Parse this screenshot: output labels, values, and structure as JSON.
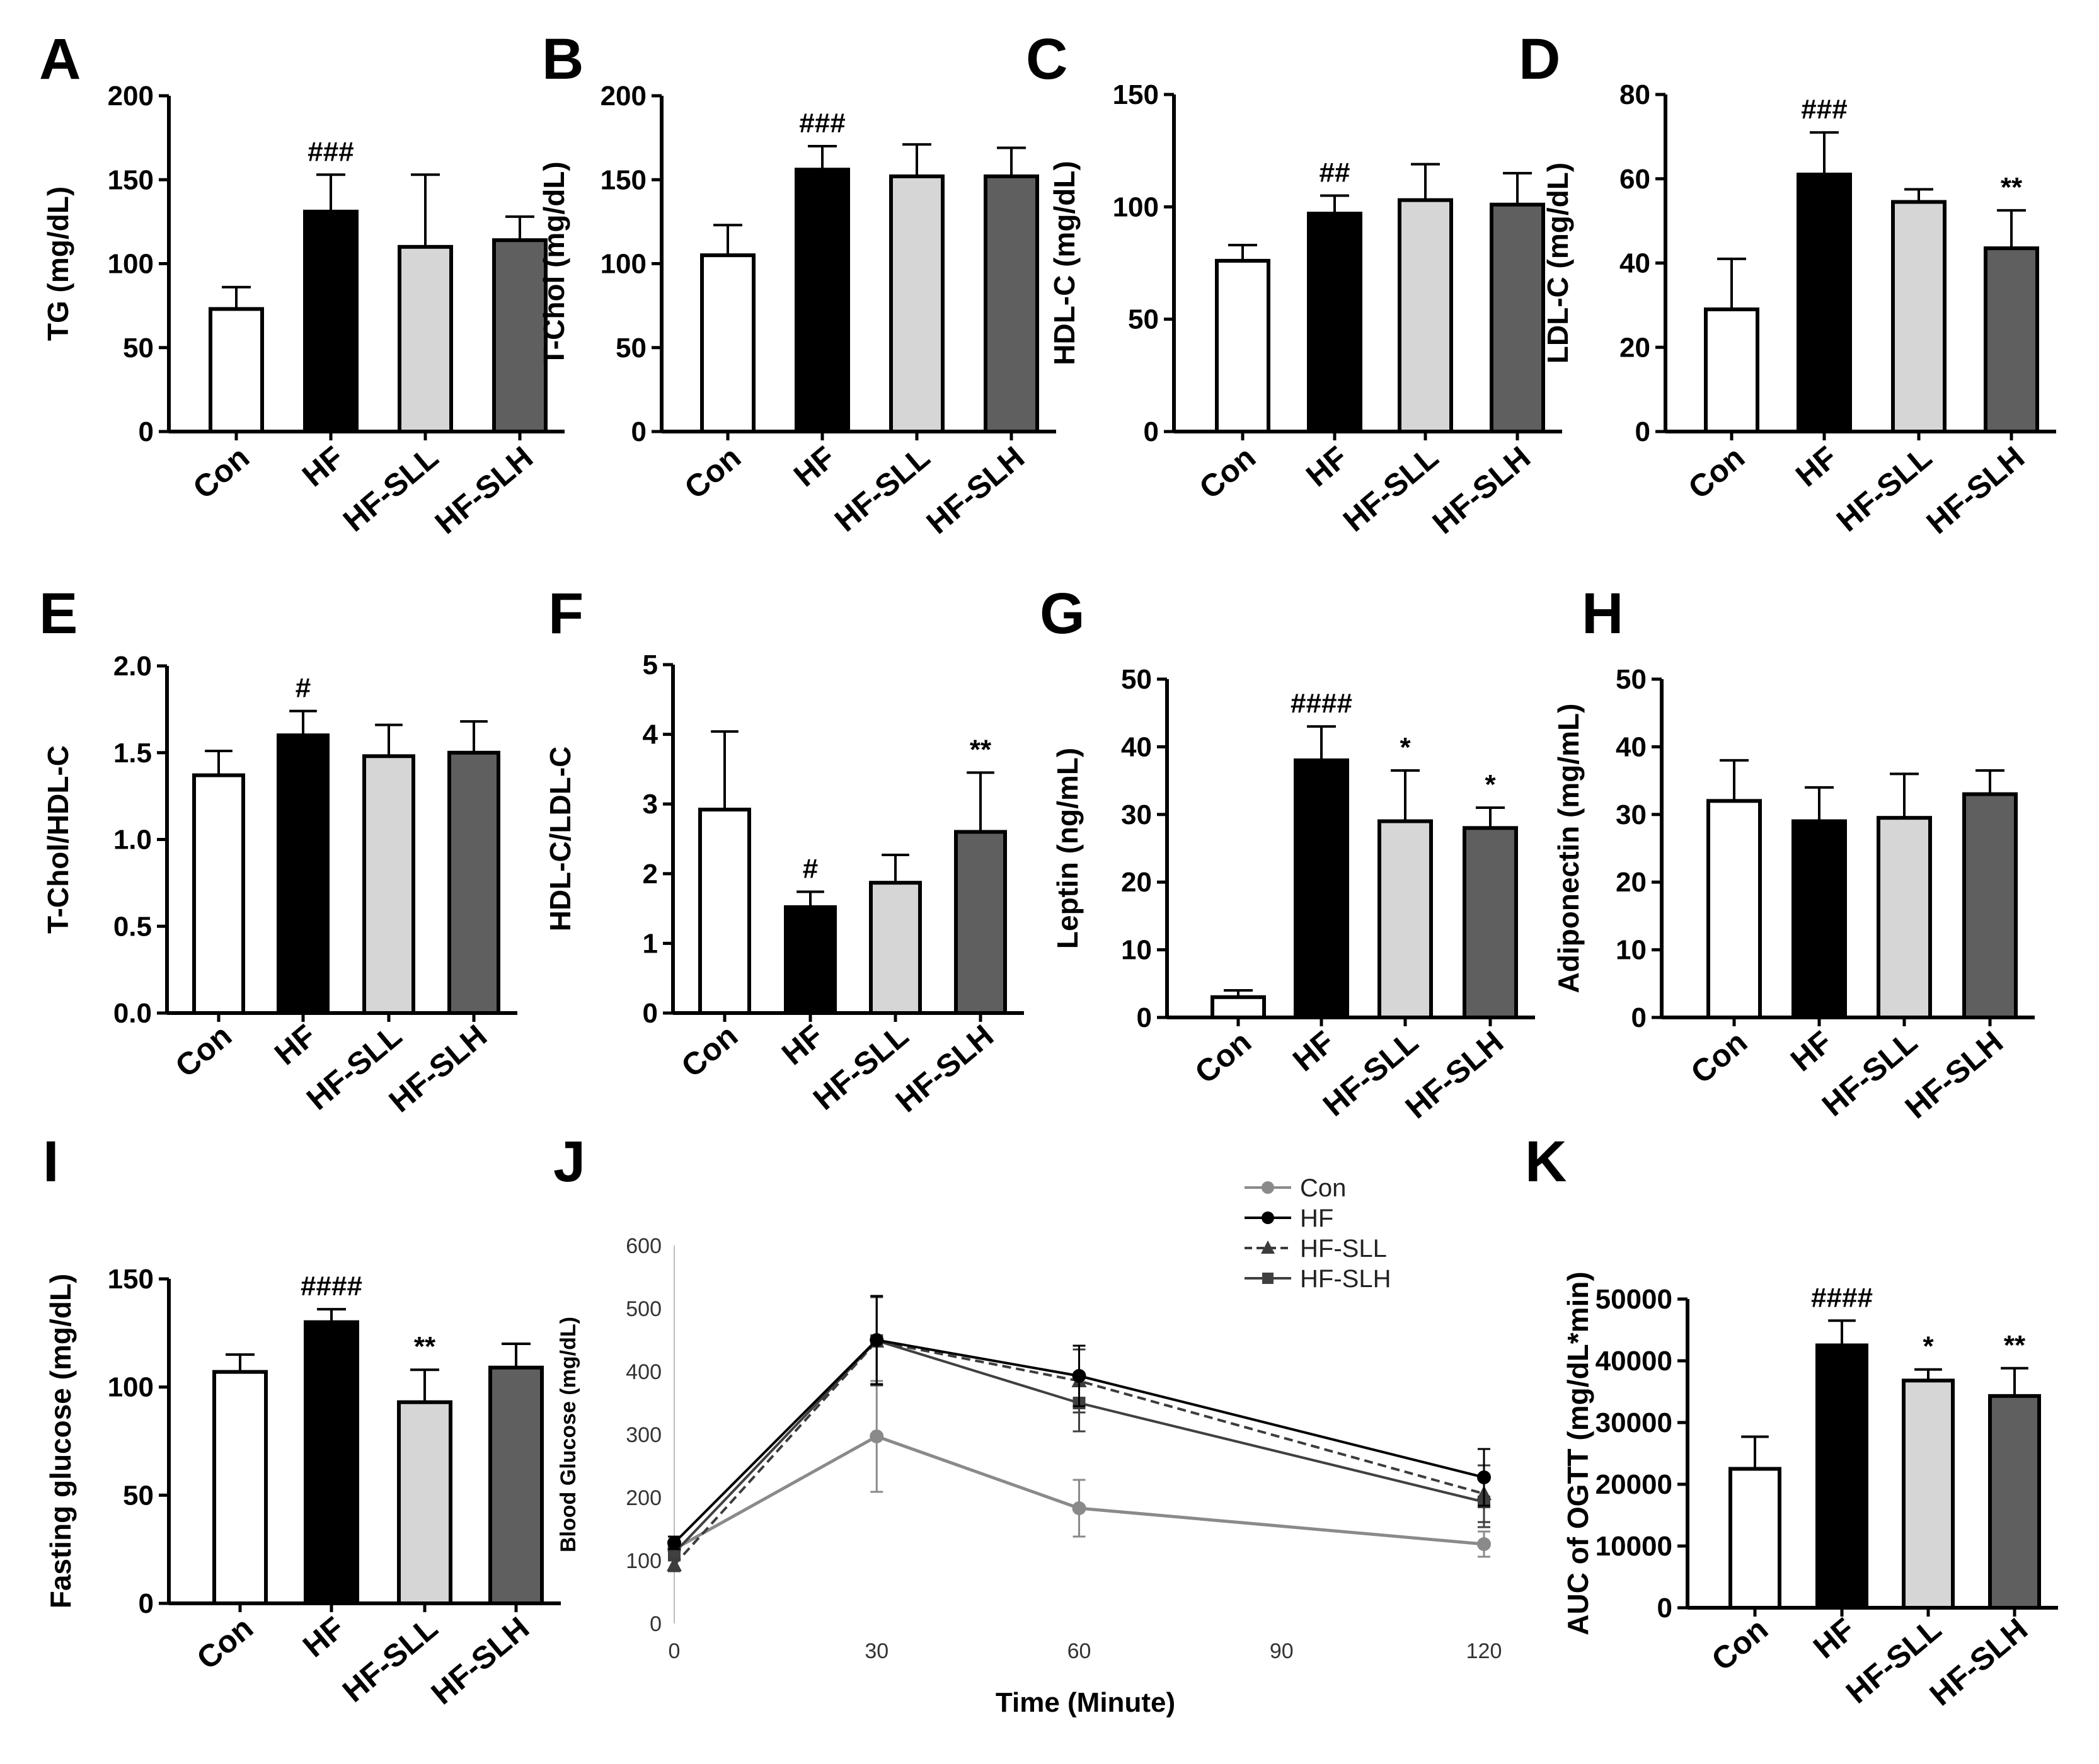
{
  "colors": {
    "Con": "#ffffff",
    "HF": "#000000",
    "HF-SLL": "#d6d6d6",
    "HF-SLH": "#5f5f5f",
    "line_Con": "#8a8a8a",
    "line_HF": "#000000",
    "line_HF-SLL": "#3c3c3c",
    "line_HF-SLH": "#404040"
  },
  "chart_data": [
    {
      "id": "A",
      "label": "A",
      "type": "bar",
      "ylabel": "TG (mg/dL)",
      "categories": [
        "Con",
        "HF",
        "HF-SLL",
        "HF-SLH"
      ],
      "values": [
        73,
        131,
        110,
        114
      ],
      "errors": [
        13,
        22,
        43,
        14
      ],
      "sig": [
        "",
        "###",
        "",
        ""
      ],
      "ylim": [
        0,
        200
      ],
      "yticks": [
        0,
        50,
        100,
        150,
        200
      ],
      "ytick_labels": [
        "0",
        "50",
        "100",
        "150",
        "200"
      ]
    },
    {
      "id": "B",
      "label": "B",
      "type": "bar",
      "ylabel": "T-Chol (mg/dL)",
      "categories": [
        "Con",
        "HF",
        "HF-SLL",
        "HF-SLH"
      ],
      "values": [
        105,
        156,
        152,
        152
      ],
      "errors": [
        18,
        14,
        19,
        17
      ],
      "sig": [
        "",
        "###",
        "",
        ""
      ],
      "ylim": [
        0,
        200
      ],
      "yticks": [
        0,
        50,
        100,
        150,
        200
      ],
      "ytick_labels": [
        "0",
        "50",
        "100",
        "150",
        "200"
      ]
    },
    {
      "id": "C",
      "label": "C",
      "type": "bar",
      "ylabel": "HDL-C (mg/dL)",
      "categories": [
        "Con",
        "HF",
        "HF-SLL",
        "HF-SLH"
      ],
      "values": [
        76,
        97,
        103,
        101
      ],
      "errors": [
        7,
        8,
        16,
        14
      ],
      "sig": [
        "",
        "##",
        "",
        ""
      ],
      "ylim": [
        0,
        150
      ],
      "yticks": [
        0,
        50,
        100,
        150
      ],
      "ytick_labels": [
        "0",
        "50",
        "100",
        "150"
      ]
    },
    {
      "id": "D",
      "label": "D",
      "type": "bar",
      "ylabel": "LDL-C (mg/dL)",
      "categories": [
        "Con",
        "HF",
        "HF-SLL",
        "HF-SLH"
      ],
      "values": [
        29,
        61,
        54.5,
        43.5
      ],
      "errors": [
        12,
        10,
        3,
        9
      ],
      "sig": [
        "",
        "###",
        "",
        "**"
      ],
      "ylim": [
        0,
        80
      ],
      "yticks": [
        0,
        20,
        40,
        60,
        80
      ],
      "ytick_labels": [
        "0",
        "20",
        "40",
        "60",
        "80"
      ]
    },
    {
      "id": "E",
      "label": "E",
      "type": "bar",
      "ylabel": "T-Chol/HDL-C",
      "categories": [
        "Con",
        "HF",
        "HF-SLL",
        "HF-SLH"
      ],
      "values": [
        1.37,
        1.6,
        1.48,
        1.5
      ],
      "errors": [
        0.14,
        0.14,
        0.18,
        0.18
      ],
      "sig": [
        "",
        "#",
        "",
        ""
      ],
      "ylim": [
        0,
        2
      ],
      "yticks": [
        0,
        0.5,
        1,
        1.5,
        2
      ],
      "ytick_labels": [
        "0.0",
        "0.5",
        "1.0",
        "1.5",
        "2.0"
      ]
    },
    {
      "id": "F",
      "label": "F",
      "type": "bar",
      "ylabel": "HDL-C/LDL-C",
      "categories": [
        "Con",
        "HF",
        "HF-SLL",
        "HF-SLH"
      ],
      "values": [
        2.92,
        1.52,
        1.87,
        2.6
      ],
      "errors": [
        1.12,
        0.22,
        0.4,
        0.85
      ],
      "sig": [
        "",
        "#",
        "",
        "**"
      ],
      "ylim": [
        0,
        5
      ],
      "yticks": [
        0,
        1,
        2,
        3,
        4,
        5
      ],
      "ytick_labels": [
        "0",
        "1",
        "2",
        "3",
        "4",
        "5"
      ]
    },
    {
      "id": "G",
      "label": "G",
      "type": "bar",
      "ylabel": "Leptin (ng/mL)",
      "categories": [
        "Con",
        "HF",
        "HF-SLL",
        "HF-SLH"
      ],
      "values": [
        3,
        38,
        29,
        28
      ],
      "errors": [
        1,
        5,
        7.5,
        3
      ],
      "sig": [
        "",
        "####",
        "*",
        "*"
      ],
      "ylim": [
        0,
        50
      ],
      "yticks": [
        0,
        10,
        20,
        30,
        40,
        50
      ],
      "ytick_labels": [
        "0",
        "10",
        "20",
        "30",
        "40",
        "50"
      ]
    },
    {
      "id": "H",
      "label": "H",
      "type": "bar",
      "ylabel": "Adiponectin (mg/mL)",
      "categories": [
        "Con",
        "HF",
        "HF-SLL",
        "HF-SLH"
      ],
      "values": [
        32,
        29,
        29.5,
        33
      ],
      "errors": [
        6,
        5,
        6.5,
        3.5
      ],
      "sig": [
        "",
        "",
        "",
        ""
      ],
      "ylim": [
        0,
        50
      ],
      "yticks": [
        0,
        10,
        20,
        30,
        40,
        50
      ],
      "ytick_labels": [
        "0",
        "10",
        "20",
        "30",
        "40",
        "50"
      ]
    },
    {
      "id": "I",
      "label": "I",
      "type": "bar",
      "ylabel": "Fasting glucose (mg/dL)",
      "categories": [
        "Con",
        "HF",
        "HF-SLL",
        "HF-SLH"
      ],
      "values": [
        107,
        130,
        93,
        109
      ],
      "errors": [
        8,
        6,
        15,
        11
      ],
      "sig": [
        "",
        "####",
        "**",
        ""
      ],
      "ylim": [
        0,
        150
      ],
      "yticks": [
        0,
        50,
        100,
        150
      ],
      "ytick_labels": [
        "0",
        "50",
        "100",
        "150"
      ]
    },
    {
      "id": "J",
      "label": "J",
      "type": "line",
      "xlabel": "Time (Minute)",
      "ylabel": "Blood Glucose (mg/dL)",
      "x": [
        0,
        30,
        60,
        120
      ],
      "xticks": [
        0,
        30,
        60,
        90,
        120
      ],
      "xlim": [
        0,
        120
      ],
      "yticks": [
        0,
        100,
        200,
        300,
        400,
        500,
        600
      ],
      "ylim": [
        0,
        600
      ],
      "legend_position": "top-right",
      "series": [
        {
          "name": "Con",
          "values": [
            118,
            297,
            183,
            126
          ],
          "errors": [
            12,
            88,
            45,
            20
          ],
          "marker": "circle",
          "dashed": false
        },
        {
          "name": "HF",
          "values": [
            128,
            450,
            393,
            232
          ],
          "errors": [
            10,
            70,
            48,
            45
          ],
          "marker": "circle",
          "dashed": false
        },
        {
          "name": "HF-SLL",
          "values": [
            93,
            448,
            385,
            206
          ],
          "errors": [
            10,
            70,
            50,
            45
          ],
          "marker": "triangle",
          "dashed": true
        },
        {
          "name": "HF-SLH",
          "values": [
            112,
            449,
            350,
            193
          ],
          "errors": [
            12,
            70,
            45,
            40
          ],
          "marker": "square",
          "dashed": false
        }
      ]
    },
    {
      "id": "K",
      "label": "K",
      "type": "bar",
      "ylabel": "AUC of OGTT (mg/dL*min)",
      "categories": [
        "Con",
        "HF",
        "HF-SLL",
        "HF-SLH"
      ],
      "values": [
        22500,
        42500,
        36800,
        34300
      ],
      "errors": [
        5200,
        4000,
        1800,
        4500
      ],
      "sig": [
        "",
        "####",
        "*",
        "**"
      ],
      "ylim": [
        0,
        50000
      ],
      "yticks": [
        0,
        10000,
        20000,
        30000,
        40000,
        50000
      ],
      "ytick_labels": [
        "0",
        "10000",
        "20000",
        "30000",
        "40000",
        "50000"
      ]
    }
  ]
}
